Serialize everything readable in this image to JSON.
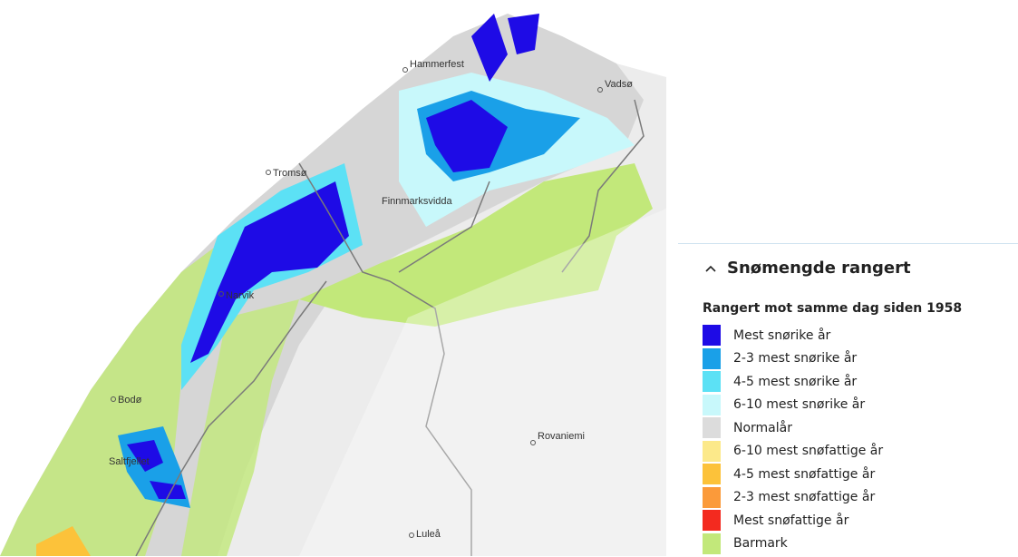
{
  "map": {
    "places": [
      "Hammerfest",
      "Vadsø",
      "Tromsø",
      "Finnmarksvidda",
      "Narvik",
      "Bodø",
      "Rovaniemi",
      "Saltfjellet",
      "Luleå"
    ]
  },
  "legend": {
    "title": "Snømengde rangert",
    "subtitle": "Rangert mot samme dag siden 1958",
    "items": [
      {
        "label": "Mest snørike år",
        "color": "#1e0be6"
      },
      {
        "label": "2-3 mest snørike år",
        "color": "#1aa0e8"
      },
      {
        "label": "4-5 mest snørike år",
        "color": "#5ce1f5"
      },
      {
        "label": "6-10 mest snørike år",
        "color": "#c8f8fb"
      },
      {
        "label": "Normalår",
        "color": "#dcdcdc"
      },
      {
        "label": "6-10 mest snøfattige år",
        "color": "#fce98a"
      },
      {
        "label": "4-5 mest snøfattige år",
        "color": "#fcc23a"
      },
      {
        "label": "2-3 mest snøfattige år",
        "color": "#fb9a3a"
      },
      {
        "label": "Mest snøfattige år",
        "color": "#f32a1f"
      },
      {
        "label": "Barmark",
        "color": "#c2e87a"
      }
    ]
  }
}
